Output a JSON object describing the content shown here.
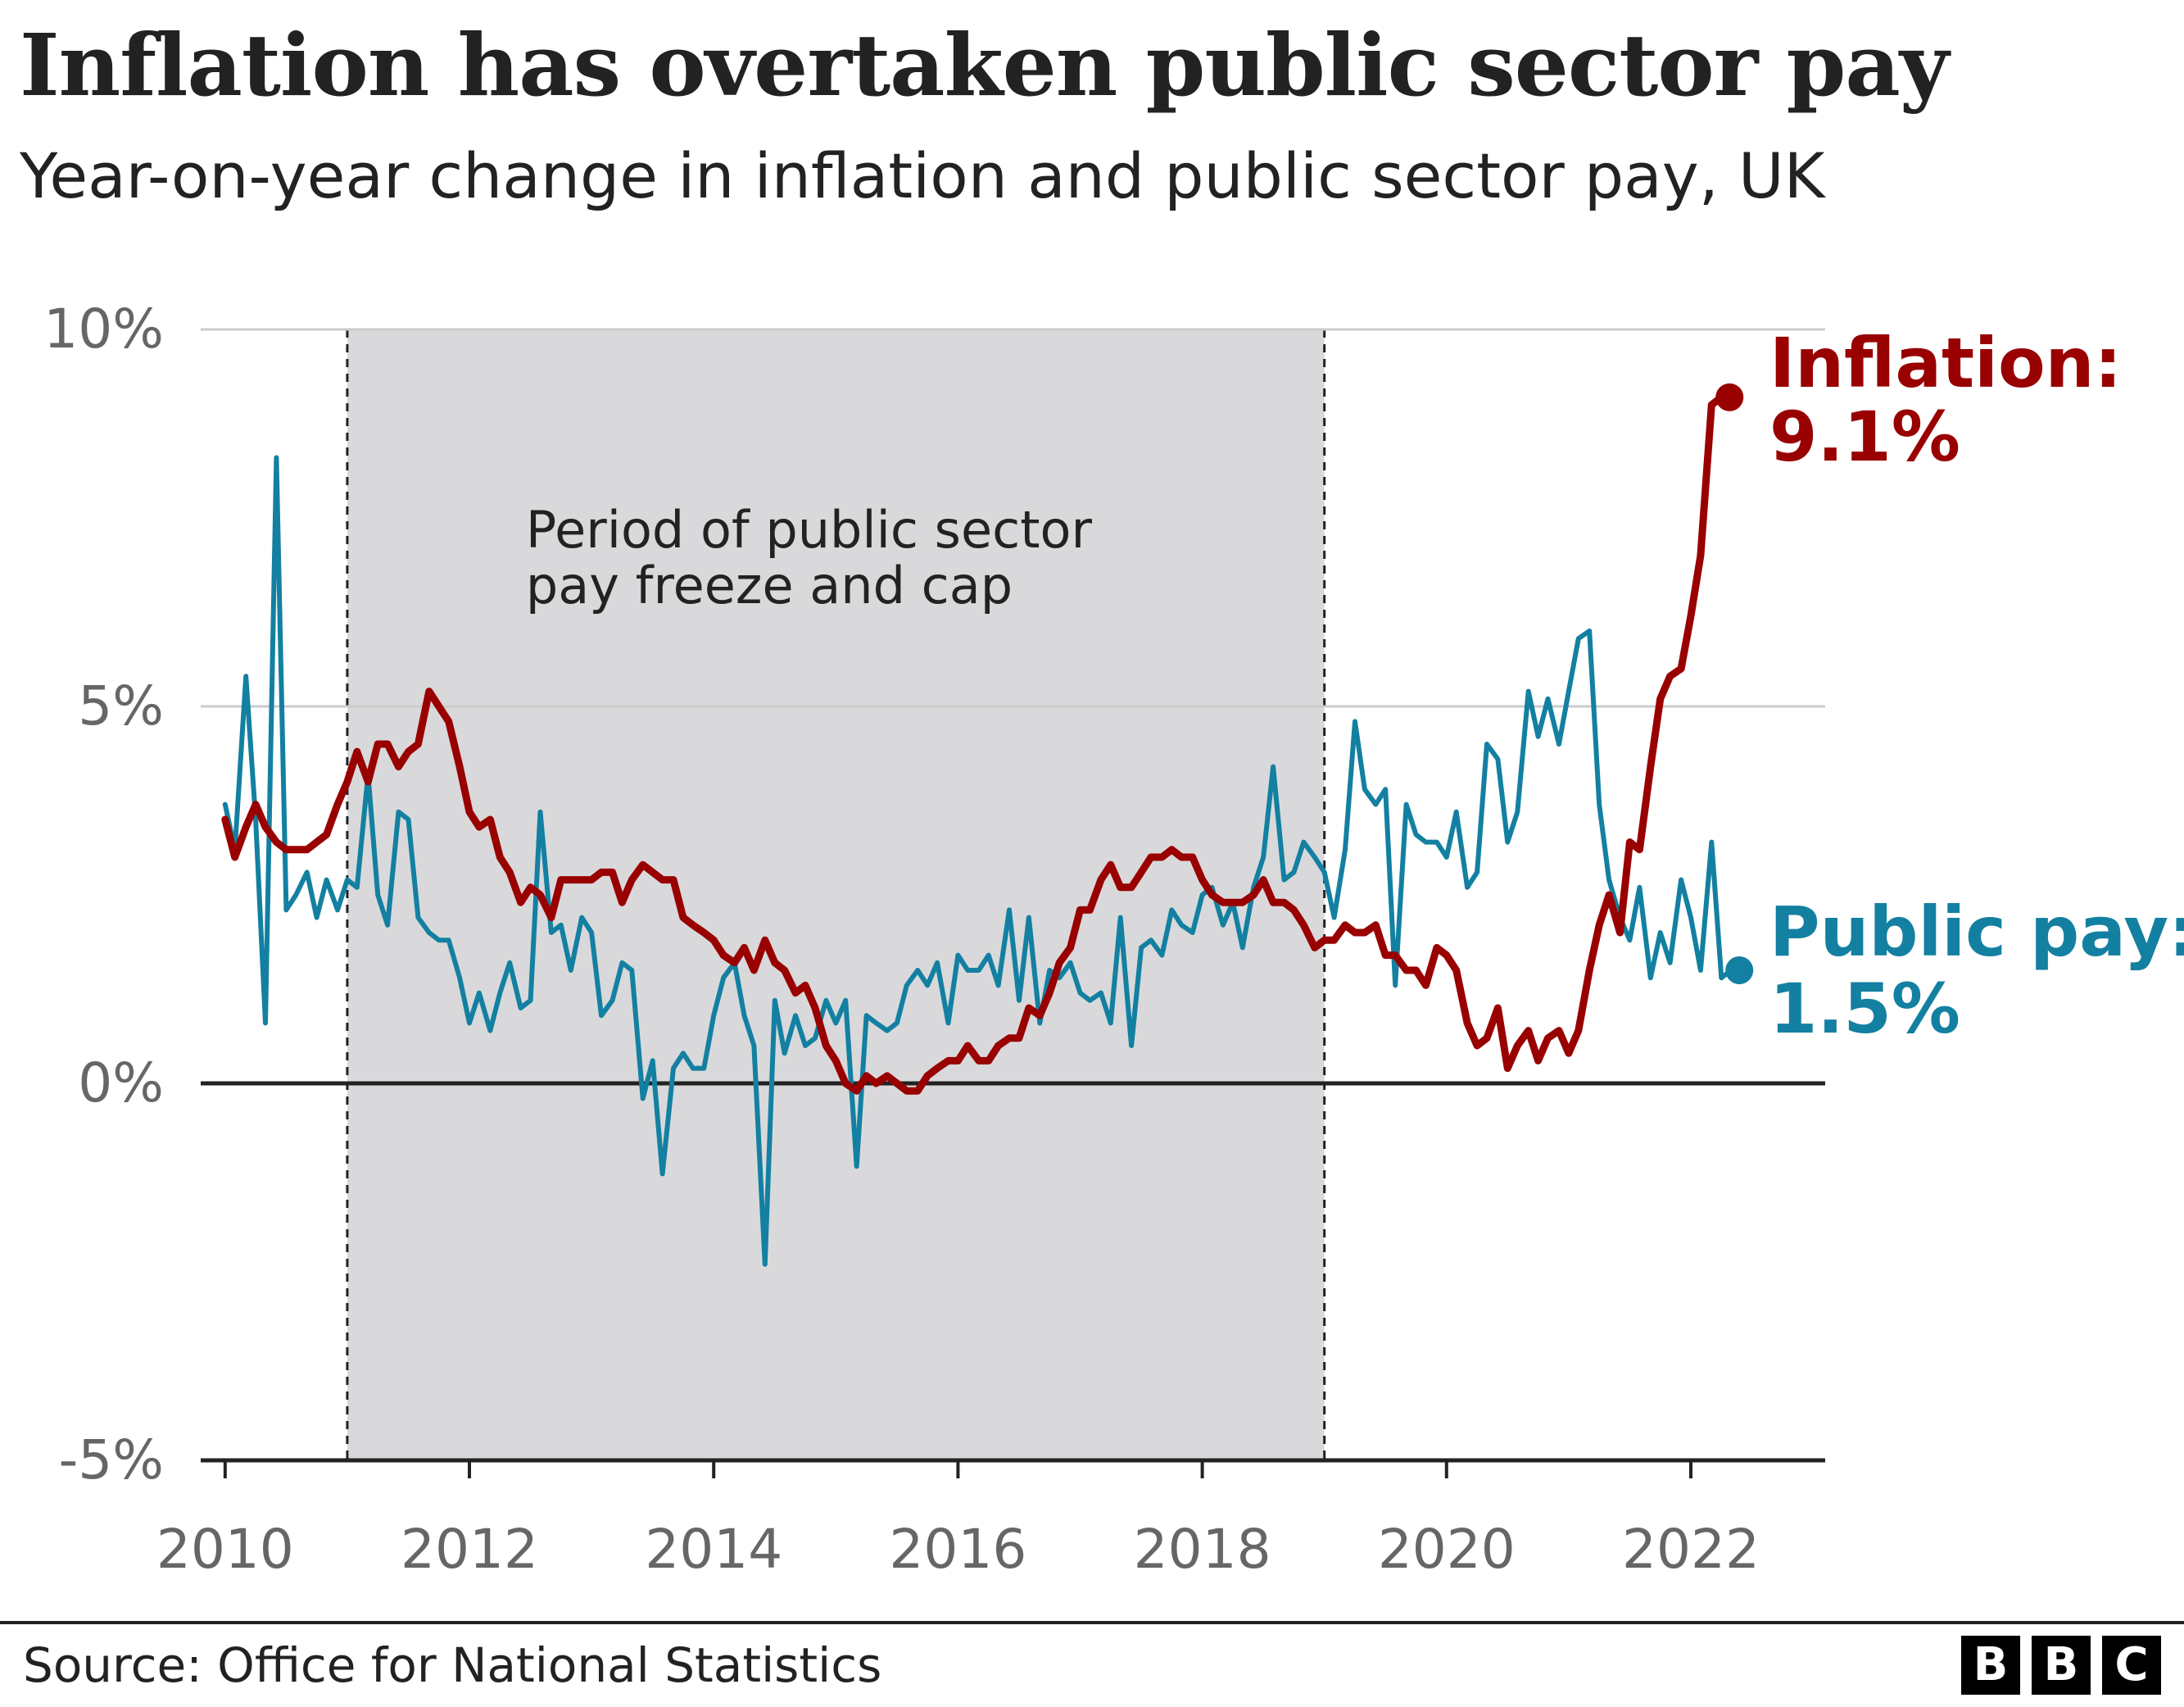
{
  "title": "Inflation has overtaken public sector pay",
  "subtitle": "Year-on-year change in inflation and public sector pay, UK",
  "source": "Source: Office for National Statistics",
  "logo": [
    "B",
    "B",
    "C"
  ],
  "colors": {
    "inflation": "#990000",
    "public_pay": "#1380A1",
    "shade": "#D9D9DB",
    "text": "#222222",
    "axis_text": "#666666",
    "grid": "#CCCCCC"
  },
  "chart_data": {
    "type": "line",
    "x_unit": "year (decimal)",
    "y_unit": "%",
    "ylim": [
      -5,
      10
    ],
    "xlim": [
      2009.8,
      2023.1
    ],
    "yticks": [
      -5,
      0,
      5,
      10
    ],
    "ytick_labels": [
      "-5%",
      "0%",
      "5%",
      "10%"
    ],
    "xticks": [
      2010,
      2012,
      2014,
      2016,
      2018,
      2020,
      2022
    ],
    "xtick_labels": [
      "2010",
      "2012",
      "2014",
      "2016",
      "2018",
      "2020",
      "2022"
    ],
    "grid": true,
    "shaded_period": {
      "start": 2011.0,
      "end": 2019.0,
      "label_lines": [
        "Period of public sector",
        "pay freeze and cap"
      ]
    },
    "series": [
      {
        "name": "Public pay",
        "end_label": "Public pay:",
        "end_value_label": "1.5%",
        "points": [
          [
            2010.0,
            3.7
          ],
          [
            2010.08,
            3.1
          ],
          [
            2010.17,
            5.4
          ],
          [
            2010.25,
            3.5
          ],
          [
            2010.33,
            0.8
          ],
          [
            2010.42,
            8.3
          ],
          [
            2010.5,
            2.3
          ],
          [
            2010.58,
            2.5
          ],
          [
            2010.67,
            2.8
          ],
          [
            2010.75,
            2.2
          ],
          [
            2010.83,
            2.7
          ],
          [
            2010.92,
            2.3
          ],
          [
            2011.0,
            2.7
          ],
          [
            2011.08,
            2.6
          ],
          [
            2011.17,
            4.1
          ],
          [
            2011.25,
            2.5
          ],
          [
            2011.33,
            2.1
          ],
          [
            2011.42,
            3.6
          ],
          [
            2011.5,
            3.5
          ],
          [
            2011.58,
            2.2
          ],
          [
            2011.67,
            2.0
          ],
          [
            2011.75,
            1.9
          ],
          [
            2011.83,
            1.9
          ],
          [
            2011.92,
            1.4
          ],
          [
            2012.0,
            0.8
          ],
          [
            2012.08,
            1.2
          ],
          [
            2012.17,
            0.7
          ],
          [
            2012.25,
            1.2
          ],
          [
            2012.33,
            1.6
          ],
          [
            2012.42,
            1.0
          ],
          [
            2012.5,
            1.1
          ],
          [
            2012.58,
            3.6
          ],
          [
            2012.67,
            2.0
          ],
          [
            2012.75,
            2.1
          ],
          [
            2012.83,
            1.5
          ],
          [
            2012.92,
            2.2
          ],
          [
            2013.0,
            2.0
          ],
          [
            2013.08,
            0.9
          ],
          [
            2013.17,
            1.1
          ],
          [
            2013.25,
            1.6
          ],
          [
            2013.33,
            1.5
          ],
          [
            2013.42,
            -0.2
          ],
          [
            2013.5,
            0.3
          ],
          [
            2013.58,
            -1.2
          ],
          [
            2013.67,
            0.2
          ],
          [
            2013.75,
            0.4
          ],
          [
            2013.83,
            0.2
          ],
          [
            2013.92,
            0.2
          ],
          [
            2014.0,
            0.9
          ],
          [
            2014.08,
            1.4
          ],
          [
            2014.17,
            1.6
          ],
          [
            2014.25,
            0.9
          ],
          [
            2014.33,
            0.5
          ],
          [
            2014.42,
            -2.4
          ],
          [
            2014.5,
            1.1
          ],
          [
            2014.58,
            0.4
          ],
          [
            2014.67,
            0.9
          ],
          [
            2014.75,
            0.5
          ],
          [
            2014.83,
            0.6
          ],
          [
            2014.92,
            1.1
          ],
          [
            2015.0,
            0.8
          ],
          [
            2015.08,
            1.1
          ],
          [
            2015.17,
            -1.1
          ],
          [
            2015.25,
            0.9
          ],
          [
            2015.33,
            0.8
          ],
          [
            2015.42,
            0.7
          ],
          [
            2015.5,
            0.8
          ],
          [
            2015.58,
            1.3
          ],
          [
            2015.67,
            1.5
          ],
          [
            2015.75,
            1.3
          ],
          [
            2015.83,
            1.6
          ],
          [
            2015.92,
            0.8
          ],
          [
            2016.0,
            1.7
          ],
          [
            2016.08,
            1.5
          ],
          [
            2016.17,
            1.5
          ],
          [
            2016.25,
            1.7
          ],
          [
            2016.33,
            1.3
          ],
          [
            2016.42,
            2.3
          ],
          [
            2016.5,
            1.1
          ],
          [
            2016.58,
            2.2
          ],
          [
            2016.67,
            0.8
          ],
          [
            2016.75,
            1.5
          ],
          [
            2016.83,
            1.4
          ],
          [
            2016.92,
            1.6
          ],
          [
            2017.0,
            1.2
          ],
          [
            2017.08,
            1.1
          ],
          [
            2017.17,
            1.2
          ],
          [
            2017.25,
            0.8
          ],
          [
            2017.33,
            2.2
          ],
          [
            2017.42,
            0.5
          ],
          [
            2017.5,
            1.8
          ],
          [
            2017.58,
            1.9
          ],
          [
            2017.67,
            1.7
          ],
          [
            2017.75,
            2.3
          ],
          [
            2017.83,
            2.1
          ],
          [
            2017.92,
            2.0
          ],
          [
            2018.0,
            2.5
          ],
          [
            2018.08,
            2.6
          ],
          [
            2018.17,
            2.1
          ],
          [
            2018.25,
            2.4
          ],
          [
            2018.33,
            1.8
          ],
          [
            2018.42,
            2.6
          ],
          [
            2018.5,
            3.0
          ],
          [
            2018.58,
            4.2
          ],
          [
            2018.67,
            2.7
          ],
          [
            2018.75,
            2.8
          ],
          [
            2018.83,
            3.2
          ],
          [
            2018.92,
            3.0
          ],
          [
            2019.0,
            2.8
          ],
          [
            2019.08,
            2.2
          ],
          [
            2019.17,
            3.1
          ],
          [
            2019.25,
            4.8
          ],
          [
            2019.33,
            3.9
          ],
          [
            2019.42,
            3.7
          ],
          [
            2019.5,
            3.9
          ],
          [
            2019.58,
            1.3
          ],
          [
            2019.67,
            3.7
          ],
          [
            2019.75,
            3.3
          ],
          [
            2019.83,
            3.2
          ],
          [
            2019.92,
            3.2
          ],
          [
            2020.0,
            3.0
          ],
          [
            2020.08,
            3.6
          ],
          [
            2020.17,
            2.6
          ],
          [
            2020.25,
            2.8
          ],
          [
            2020.33,
            4.5
          ],
          [
            2020.42,
            4.3
          ],
          [
            2020.5,
            3.2
          ],
          [
            2020.58,
            3.6
          ],
          [
            2020.67,
            5.2
          ],
          [
            2020.75,
            4.6
          ],
          [
            2020.83,
            5.1
          ],
          [
            2020.92,
            4.5
          ],
          [
            2021.0,
            5.2
          ],
          [
            2021.08,
            5.9
          ],
          [
            2021.17,
            6.0
          ],
          [
            2021.25,
            3.7
          ],
          [
            2021.33,
            2.7
          ],
          [
            2021.42,
            2.2
          ],
          [
            2021.5,
            1.9
          ],
          [
            2021.58,
            2.6
          ],
          [
            2021.67,
            1.4
          ],
          [
            2021.75,
            2.0
          ],
          [
            2021.83,
            1.6
          ],
          [
            2021.92,
            2.7
          ],
          [
            2022.0,
            2.2
          ],
          [
            2022.08,
            1.5
          ],
          [
            2022.17,
            3.2
          ],
          [
            2022.25,
            1.4
          ],
          [
            2022.33,
            1.5
          ]
        ]
      },
      {
        "name": "Inflation",
        "end_label": "Inflation:",
        "end_value_label": "9.1%",
        "points": [
          [
            2010.0,
            3.5
          ],
          [
            2010.08,
            3.0
          ],
          [
            2010.17,
            3.4
          ],
          [
            2010.25,
            3.7
          ],
          [
            2010.33,
            3.4
          ],
          [
            2010.42,
            3.2
          ],
          [
            2010.5,
            3.1
          ],
          [
            2010.58,
            3.1
          ],
          [
            2010.67,
            3.1
          ],
          [
            2010.75,
            3.2
          ],
          [
            2010.83,
            3.3
          ],
          [
            2010.92,
            3.7
          ],
          [
            2011.0,
            4.0
          ],
          [
            2011.08,
            4.4
          ],
          [
            2011.17,
            4.0
          ],
          [
            2011.25,
            4.5
          ],
          [
            2011.33,
            4.5
          ],
          [
            2011.42,
            4.2
          ],
          [
            2011.5,
            4.4
          ],
          [
            2011.58,
            4.5
          ],
          [
            2011.67,
            5.2
          ],
          [
            2011.75,
            5.0
          ],
          [
            2011.83,
            4.8
          ],
          [
            2011.92,
            4.2
          ],
          [
            2012.0,
            3.6
          ],
          [
            2012.08,
            3.4
          ],
          [
            2012.17,
            3.5
          ],
          [
            2012.25,
            3.0
          ],
          [
            2012.33,
            2.8
          ],
          [
            2012.42,
            2.4
          ],
          [
            2012.5,
            2.6
          ],
          [
            2012.58,
            2.5
          ],
          [
            2012.67,
            2.2
          ],
          [
            2012.75,
            2.7
          ],
          [
            2012.83,
            2.7
          ],
          [
            2012.92,
            2.7
          ],
          [
            2013.0,
            2.7
          ],
          [
            2013.08,
            2.8
          ],
          [
            2013.17,
            2.8
          ],
          [
            2013.25,
            2.4
          ],
          [
            2013.33,
            2.7
          ],
          [
            2013.42,
            2.9
          ],
          [
            2013.5,
            2.8
          ],
          [
            2013.58,
            2.7
          ],
          [
            2013.67,
            2.7
          ],
          [
            2013.75,
            2.2
          ],
          [
            2013.83,
            2.1
          ],
          [
            2013.92,
            2.0
          ],
          [
            2014.0,
            1.9
          ],
          [
            2014.08,
            1.7
          ],
          [
            2014.17,
            1.6
          ],
          [
            2014.25,
            1.8
          ],
          [
            2014.33,
            1.5
          ],
          [
            2014.42,
            1.9
          ],
          [
            2014.5,
            1.6
          ],
          [
            2014.58,
            1.5
          ],
          [
            2014.67,
            1.2
          ],
          [
            2014.75,
            1.3
          ],
          [
            2014.83,
            1.0
          ],
          [
            2014.92,
            0.5
          ],
          [
            2015.0,
            0.3
          ],
          [
            2015.08,
            0.0
          ],
          [
            2015.17,
            -0.1
          ],
          [
            2015.25,
            0.1
          ],
          [
            2015.33,
            0.0
          ],
          [
            2015.42,
            0.1
          ],
          [
            2015.5,
            0.0
          ],
          [
            2015.58,
            -0.1
          ],
          [
            2015.67,
            -0.1
          ],
          [
            2015.75,
            0.1
          ],
          [
            2015.83,
            0.2
          ],
          [
            2015.92,
            0.3
          ],
          [
            2016.0,
            0.3
          ],
          [
            2016.08,
            0.5
          ],
          [
            2016.17,
            0.3
          ],
          [
            2016.25,
            0.3
          ],
          [
            2016.33,
            0.5
          ],
          [
            2016.42,
            0.6
          ],
          [
            2016.5,
            0.6
          ],
          [
            2016.58,
            1.0
          ],
          [
            2016.67,
            0.9
          ],
          [
            2016.75,
            1.2
          ],
          [
            2016.83,
            1.6
          ],
          [
            2016.92,
            1.8
          ],
          [
            2017.0,
            2.3
          ],
          [
            2017.08,
            2.3
          ],
          [
            2017.17,
            2.7
          ],
          [
            2017.25,
            2.9
          ],
          [
            2017.33,
            2.6
          ],
          [
            2017.42,
            2.6
          ],
          [
            2017.5,
            2.8
          ],
          [
            2017.58,
            3.0
          ],
          [
            2017.67,
            3.0
          ],
          [
            2017.75,
            3.1
          ],
          [
            2017.83,
            3.0
          ],
          [
            2017.92,
            3.0
          ],
          [
            2018.0,
            2.7
          ],
          [
            2018.08,
            2.5
          ],
          [
            2018.17,
            2.4
          ],
          [
            2018.25,
            2.4
          ],
          [
            2018.33,
            2.4
          ],
          [
            2018.42,
            2.5
          ],
          [
            2018.5,
            2.7
          ],
          [
            2018.58,
            2.4
          ],
          [
            2018.67,
            2.4
          ],
          [
            2018.75,
            2.3
          ],
          [
            2018.83,
            2.1
          ],
          [
            2018.92,
            1.8
          ],
          [
            2019.0,
            1.9
          ],
          [
            2019.08,
            1.9
          ],
          [
            2019.17,
            2.1
          ],
          [
            2019.25,
            2.0
          ],
          [
            2019.33,
            2.0
          ],
          [
            2019.42,
            2.1
          ],
          [
            2019.5,
            1.7
          ],
          [
            2019.58,
            1.7
          ],
          [
            2019.67,
            1.5
          ],
          [
            2019.75,
            1.5
          ],
          [
            2019.83,
            1.3
          ],
          [
            2019.92,
            1.8
          ],
          [
            2020.0,
            1.7
          ],
          [
            2020.08,
            1.5
          ],
          [
            2020.17,
            0.8
          ],
          [
            2020.25,
            0.5
          ],
          [
            2020.33,
            0.6
          ],
          [
            2020.42,
            1.0
          ],
          [
            2020.5,
            0.2
          ],
          [
            2020.58,
            0.5
          ],
          [
            2020.67,
            0.7
          ],
          [
            2020.75,
            0.3
          ],
          [
            2020.83,
            0.6
          ],
          [
            2020.92,
            0.7
          ],
          [
            2021.0,
            0.4
          ],
          [
            2021.08,
            0.7
          ],
          [
            2021.17,
            1.5
          ],
          [
            2021.25,
            2.1
          ],
          [
            2021.33,
            2.5
          ],
          [
            2021.42,
            2.0
          ],
          [
            2021.5,
            3.2
          ],
          [
            2021.58,
            3.1
          ],
          [
            2021.67,
            4.2
          ],
          [
            2021.75,
            5.1
          ],
          [
            2021.83,
            5.4
          ],
          [
            2021.92,
            5.5
          ],
          [
            2022.0,
            6.2
          ],
          [
            2022.08,
            7.0
          ],
          [
            2022.17,
            9.0
          ],
          [
            2022.25,
            9.1
          ]
        ]
      }
    ]
  }
}
